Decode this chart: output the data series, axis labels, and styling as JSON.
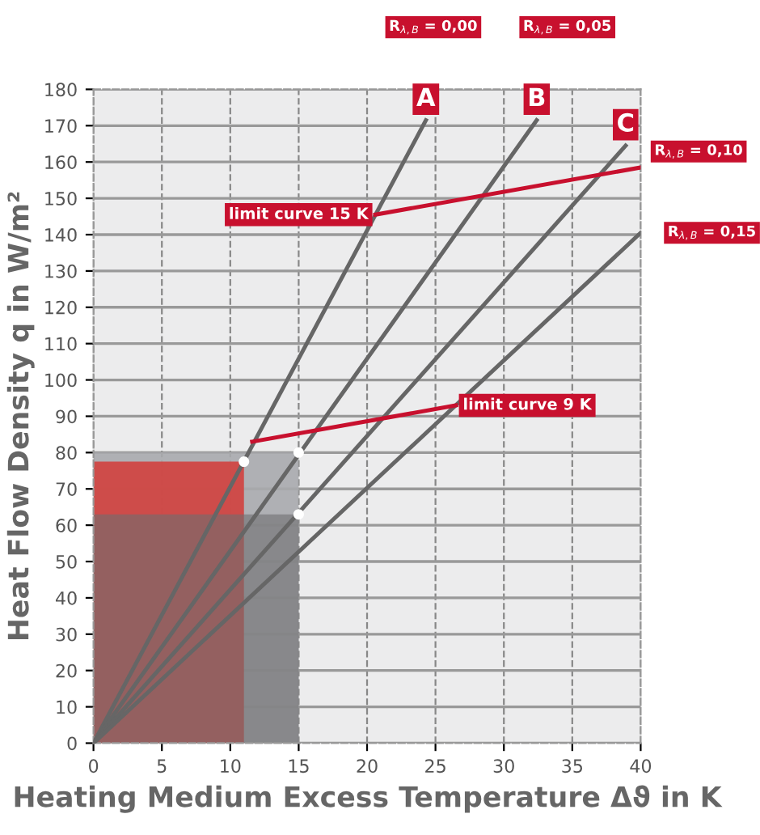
{
  "chart_data": {
    "type": "line",
    "xlabel": "Heating Medium Excess Temperature Δϑ in K",
    "ylabel": "Heat Flow Density q in W/m²",
    "xlim": [
      0,
      40
    ],
    "ylim": [
      0,
      180
    ],
    "xticks": [
      0,
      5,
      10,
      15,
      20,
      25,
      30,
      35,
      40
    ],
    "yticks": [
      0,
      10,
      20,
      30,
      40,
      50,
      60,
      70,
      80,
      90,
      100,
      110,
      120,
      130,
      140,
      150,
      160,
      170,
      180
    ],
    "grid": true,
    "marker": "none",
    "series": [
      {
        "type": "area",
        "color": "#a9aaad",
        "x": [
          0,
          15
        ],
        "values": [
          80,
          80
        ]
      },
      {
        "type": "area",
        "color": "#d2413e",
        "x": [
          0,
          11
        ],
        "values": [
          77.5,
          77.5
        ]
      },
      {
        "type": "area",
        "color": "#6e6e70",
        "x": [
          0,
          15
        ],
        "values": [
          63,
          63
        ]
      },
      {
        "name": "A",
        "color": "#666666",
        "x": [
          0,
          24.3
        ],
        "values": [
          0,
          171.5
        ]
      },
      {
        "name": "B",
        "color": "#666666",
        "x": [
          0,
          32.4
        ],
        "values": [
          0,
          171.5
        ]
      },
      {
        "name": "C",
        "color": "#666666",
        "x": [
          0,
          38.9
        ],
        "values": [
          0,
          164.5
        ]
      },
      {
        "name": "R$_{λ,B}$ = 0,15",
        "color": "#666666",
        "x": [
          0,
          40
        ],
        "values": [
          0,
          140.5
        ]
      },
      {
        "name": "limit curve 15 K",
        "color": "#c8102e",
        "x": [
          20.6,
          40
        ],
        "values": [
          145.5,
          158.5
        ]
      },
      {
        "name": "limit curve 9 K",
        "color": "#c8102e",
        "x": [
          11.6,
          26.5
        ],
        "values": [
          83,
          93
        ]
      },
      {
        "type": "scatter",
        "color": "#ffffff",
        "marker": "circle",
        "x": [
          11,
          15,
          15
        ],
        "values": [
          77.5,
          80,
          63
        ]
      }
    ],
    "annotations": [
      "R$_{λ,B}$ = 0,00",
      "R$_{λ,B}$ = 0,05",
      "R$_{λ,B}$ = 0,10"
    ]
  }
}
